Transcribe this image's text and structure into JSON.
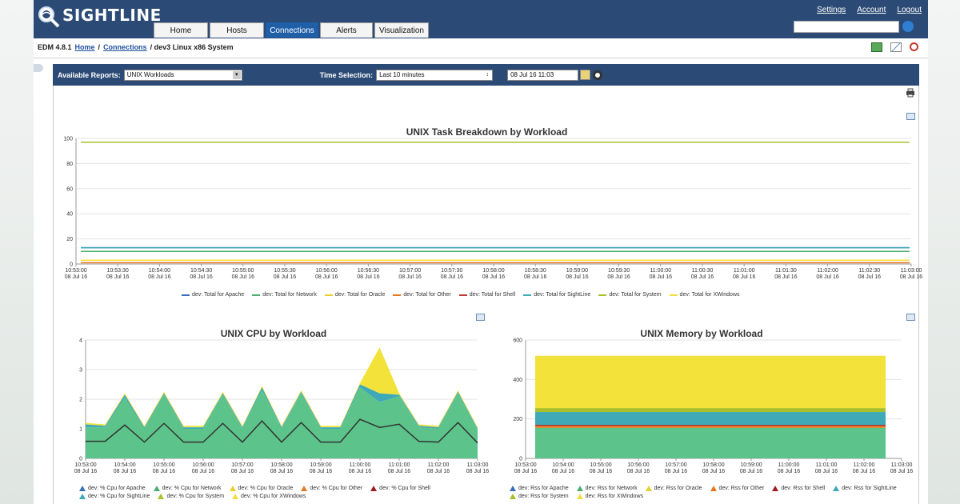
{
  "brand": {
    "name": "SIGHTLINE"
  },
  "nav": {
    "tabs": [
      {
        "label": "Home",
        "active": false
      },
      {
        "label": "Hosts",
        "active": false
      },
      {
        "label": "Connections",
        "active": true
      },
      {
        "label": "Alerts",
        "active": false
      },
      {
        "label": "Visualization",
        "active": false
      }
    ],
    "links": [
      "Settings",
      "Account",
      "Logout"
    ]
  },
  "breadcrumb": {
    "prefix": "EDM 4.8.1",
    "home": "Home",
    "connections": "Connections",
    "current": "/ dev3 Linux x86 System"
  },
  "reports": {
    "available_label": "Available Reports:",
    "available_value": "UNIX Workloads",
    "time_label": "Time Selection:",
    "time_value": "Last 10 minutes",
    "date_value": "08 Jul 16 11:03"
  },
  "colors": {
    "header": "#2b4a75",
    "active_tab": "#1f5fa8"
  },
  "chart_data": [
    {
      "type": "line",
      "title": "UNIX Task Breakdown by Workload",
      "ylim": [
        0,
        100
      ],
      "yticks": [
        0,
        20,
        40,
        60,
        80,
        100
      ],
      "x": [
        "10:53:00",
        "10:53:30",
        "10:54:00",
        "10:54:30",
        "10:55:00",
        "10:55:30",
        "10:56:00",
        "10:56:30",
        "10:57:00",
        "10:57:30",
        "10:58:00",
        "10:58:30",
        "10:59:00",
        "10:59:30",
        "11:00:00",
        "11:00:30",
        "11:01:00",
        "11:01:30",
        "11:02:00",
        "11:02:30",
        "11:03:00"
      ],
      "x_sub": "08 Jul 16",
      "series": [
        {
          "name": "dev: Total for Apache",
          "color": "#3a6fb5",
          "value": 13
        },
        {
          "name": "dev: Total for Network",
          "color": "#4caf6e",
          "value": 10
        },
        {
          "name": "dev: Total for Oracle",
          "color": "#e6cf2e",
          "value": 0
        },
        {
          "name": "dev: Total for Other",
          "color": "#e8771c",
          "value": 1
        },
        {
          "name": "dev: Total for Shell",
          "color": "#c0392b",
          "value": 0
        },
        {
          "name": "dev: Total for SightLine",
          "color": "#3fa9b8",
          "value": 13
        },
        {
          "name": "dev: Total for System",
          "color": "#a8c02a",
          "value": 97
        },
        {
          "name": "dev: Total for XWindows",
          "color": "#f2df3a",
          "value": 3
        }
      ]
    },
    {
      "type": "area",
      "title": "UNIX CPU by Workload",
      "ylim": [
        0,
        4
      ],
      "yticks": [
        0,
        1,
        2,
        3,
        4
      ],
      "x": [
        "10:53:00",
        "10:54:00",
        "10:55:00",
        "10:56:00",
        "10:57:00",
        "10:58:00",
        "10:59:00",
        "11:00:00",
        "11:01:00",
        "11:02:00",
        "11:03:00"
      ],
      "x_sub": "08 Jul 16",
      "stack": {
        "green": [
          1.05,
          1.05,
          2.05,
          1.0,
          2.15,
          1.0,
          1.0,
          2.15,
          1.0,
          2.3,
          1.0,
          2.2,
          1.0,
          1.0,
          2.4,
          1.9,
          2.1,
          1.05,
          1.0,
          2.2,
          0.95
        ],
        "teal": [
          0.1,
          0.05,
          0.1,
          0.05,
          0.05,
          0.05,
          0.05,
          0.05,
          0.05,
          0.1,
          0.05,
          0.05,
          0.05,
          0.05,
          0.1,
          0.3,
          0.05,
          0.05,
          0.05,
          0.05,
          0.05
        ],
        "yellow": [
          0.05,
          0.05,
          0.05,
          0.05,
          0.05,
          0.05,
          0.05,
          0.05,
          0.05,
          0.05,
          0.05,
          0.05,
          0.05,
          0.05,
          0.05,
          1.55,
          0.05,
          0.05,
          0.05,
          0.05,
          0.05
        ]
      },
      "legend": [
        {
          "name": "dev: % Cpu for Apache",
          "color": "#3a6fb5"
        },
        {
          "name": "dev: % Cpu for Network",
          "color": "#4caf6e"
        },
        {
          "name": "dev: % Cpu for Oracle",
          "color": "#e6cf2e"
        },
        {
          "name": "dev: % Cpu for Other",
          "color": "#e8771c"
        },
        {
          "name": "dev: % Cpu for Shell",
          "color": "#a01c1c"
        },
        {
          "name": "dev: % Cpu for SightLine",
          "color": "#3fa9b8"
        },
        {
          "name": "dev: % Cpu for System",
          "color": "#a8c02a"
        },
        {
          "name": "dev: % Cpu for XWindows",
          "color": "#f2df3a"
        }
      ]
    },
    {
      "type": "area",
      "title": "UNIX Memory by Workload",
      "ylim": [
        0,
        600
      ],
      "yticks": [
        0,
        200,
        400,
        600
      ],
      "x": [
        "10:53:00",
        "10:54:00",
        "10:55:00",
        "10:56:00",
        "10:57:00",
        "10:58:00",
        "10:59:00",
        "11:00:00",
        "11:01:00",
        "11:02:00",
        "11:03:00"
      ],
      "x_sub": "08 Jul 16",
      "layers": [
        {
          "name": "Network",
          "color": "#5cc48a",
          "value": 155
        },
        {
          "name": "Other",
          "color": "#e8771c",
          "value": 10
        },
        {
          "name": "Shell",
          "color": "#a01c1c",
          "value": 5
        },
        {
          "name": "SightLine",
          "color": "#3fa9b8",
          "value": 65
        },
        {
          "name": "System",
          "color": "#a8c02a",
          "value": 20
        },
        {
          "name": "XWindows",
          "color": "#f2e23a",
          "value": 265
        }
      ],
      "legend": [
        {
          "name": "dev: Rss for Apache",
          "color": "#3a6fb5"
        },
        {
          "name": "dev: Rss for Network",
          "color": "#4caf6e"
        },
        {
          "name": "dev: Rss for Oracle",
          "color": "#e6cf2e"
        },
        {
          "name": "dev: Rss for Other",
          "color": "#e8771c"
        },
        {
          "name": "dev: Rss for Shell",
          "color": "#a01c1c"
        },
        {
          "name": "dev: Rss for SightLine",
          "color": "#3fa9b8"
        },
        {
          "name": "dev: Rss for System",
          "color": "#a8c02a"
        },
        {
          "name": "dev: Rss for XWindows",
          "color": "#f2df3a"
        }
      ]
    }
  ]
}
